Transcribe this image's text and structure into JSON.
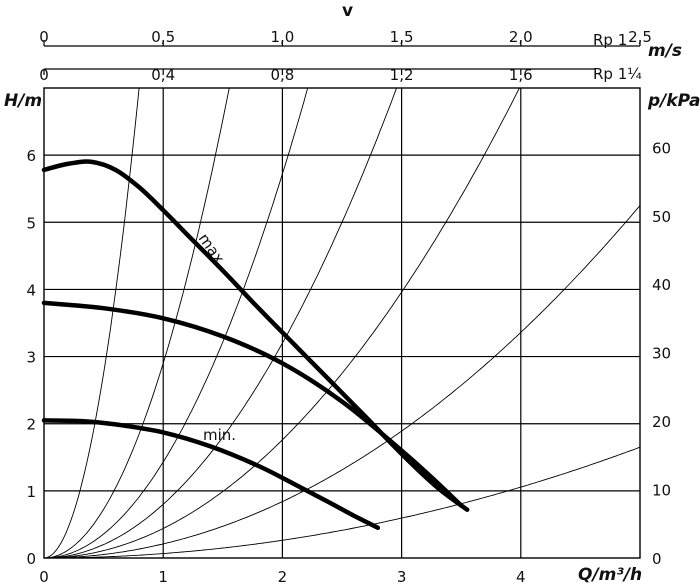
{
  "chart_data": {
    "type": "line",
    "title": "",
    "xlabel": "Q/m³/h",
    "ylabel_left": "H/m",
    "ylabel_right": "p/kPa",
    "top_axis_label": "v",
    "velocity_unit": "m/s",
    "xlim": [
      0,
      5
    ],
    "ylim": [
      0,
      7
    ],
    "grid": true,
    "x_ticks": [
      "0",
      "1",
      "2",
      "3",
      "4"
    ],
    "y_ticks_left": [
      "0",
      "1",
      "2",
      "3",
      "4",
      "5",
      "6"
    ],
    "y_ticks_right": [
      "0",
      "10",
      "20",
      "30",
      "40",
      "50",
      "60"
    ],
    "velocity_scales": [
      {
        "name": "Rp 1",
        "ticks": [
          "0",
          "0,5",
          "1,0",
          "1,5",
          "2,0",
          "2,5"
        ],
        "values": [
          0,
          0.5,
          1.0,
          1.5,
          2.0,
          2.5
        ],
        "q_per_unit": 2.0
      },
      {
        "name": "Rp 1¼",
        "ticks": [
          "0",
          "0,4",
          "0,8",
          "1,2",
          "1,6"
        ],
        "values": [
          0,
          0.4,
          0.8,
          1.2,
          1.6
        ],
        "q_per_unit": 2.5
      }
    ],
    "series": [
      {
        "name": "max.",
        "x": [
          0,
          0.2,
          0.4,
          0.6,
          0.8,
          1.0,
          1.2,
          1.5,
          1.8,
          2.1,
          2.4,
          2.7,
          3.0,
          3.3,
          3.55
        ],
        "y": [
          5.78,
          5.87,
          5.9,
          5.78,
          5.52,
          5.18,
          4.82,
          4.28,
          3.72,
          3.18,
          2.64,
          2.1,
          1.55,
          1.05,
          0.72
        ]
      },
      {
        "name": "",
        "x": [
          0,
          0.5,
          1.0,
          1.5,
          2.0,
          2.5,
          3.0,
          3.3,
          3.5
        ],
        "y": [
          3.8,
          3.72,
          3.57,
          3.3,
          2.9,
          2.33,
          1.6,
          1.12,
          0.78
        ]
      },
      {
        "name": "min.",
        "x": [
          0,
          0.3,
          0.6,
          1.0,
          1.4,
          1.8,
          2.1,
          2.4,
          2.6,
          2.8
        ],
        "y": [
          2.05,
          2.04,
          1.99,
          1.87,
          1.66,
          1.37,
          1.1,
          0.82,
          0.63,
          0.45
        ]
      }
    ],
    "system_curves": [
      {
        "k": 11.0
      },
      {
        "k": 2.9
      },
      {
        "k": 1.43
      },
      {
        "k": 0.8
      },
      {
        "k": 0.44
      },
      {
        "k": 0.21
      },
      {
        "k": 0.066
      }
    ]
  }
}
